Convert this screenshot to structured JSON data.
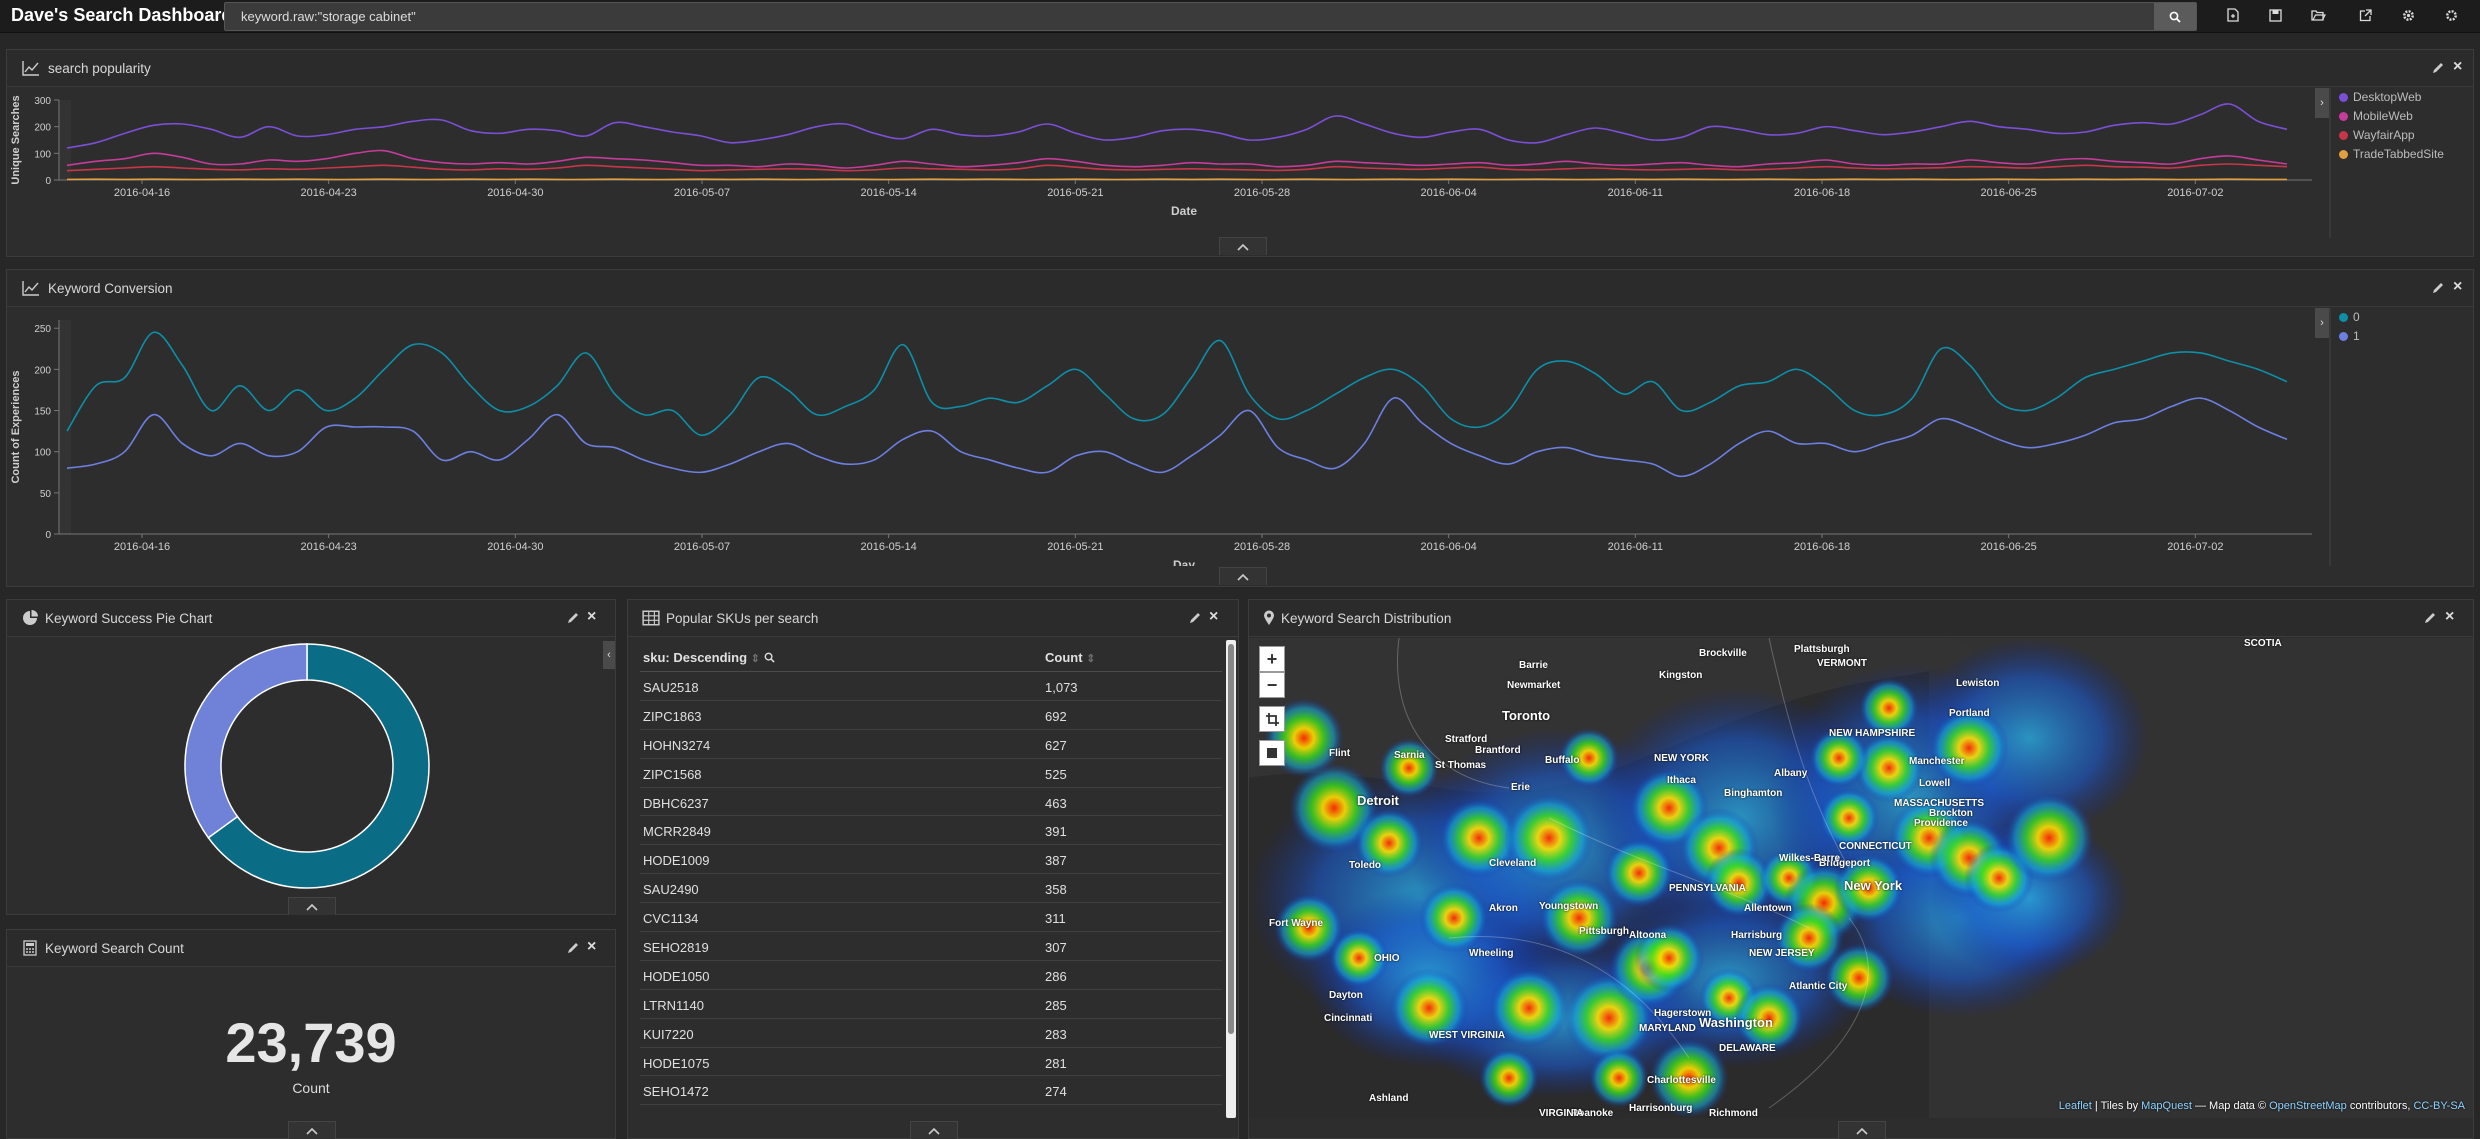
{
  "app": {
    "title": "Dave's Search Dashboard"
  },
  "search": {
    "value": "keyword.raw:\"storage cabinet\""
  },
  "icons": {
    "top": [
      "new-dashboard-icon",
      "save-icon",
      "open-icon",
      "share-icon",
      "options-icon",
      "settings-icon"
    ]
  },
  "colors": {
    "desktop": "#7b4fd6",
    "mobile": "#c53c9a",
    "wayfair": "#c8364a",
    "trade": "#e0a040",
    "conv0": "#0d8fa8",
    "conv1": "#6d7fe0",
    "pie_a": "#0b6c86",
    "pie_b": "#6f82d8"
  },
  "panels": {
    "popularity": {
      "title": "search popularity"
    },
    "conversion": {
      "title": "Keyword Conversion"
    },
    "pie": {
      "title": "Keyword Success Pie Chart"
    },
    "skus": {
      "title": "Popular SKUs per search"
    },
    "map": {
      "title": "Keyword Search Distribution"
    },
    "count": {
      "title": "Keyword Search Count",
      "value": "23,739",
      "label": "Count"
    }
  },
  "chart_data": [
    {
      "type": "line",
      "ylabel": "Unique Searches",
      "xlabel": "Date",
      "ylim": [
        0,
        300
      ],
      "yticks": [
        0,
        100,
        200,
        300
      ],
      "xticks": [
        "2016-04-16",
        "2016-04-23",
        "2016-04-30",
        "2016-05-07",
        "2016-05-14",
        "2016-05-21",
        "2016-05-28",
        "2016-06-04",
        "2016-06-11",
        "2016-06-18",
        "2016-06-25",
        "2016-07-02"
      ],
      "x_range": [
        "2016-04-13",
        "2016-07-06"
      ],
      "series": [
        {
          "name": "DesktopWeb",
          "values": [
            120,
            140,
            175,
            205,
            210,
            190,
            160,
            200,
            165,
            170,
            190,
            200,
            220,
            225,
            185,
            175,
            190,
            185,
            165,
            215,
            200,
            180,
            165,
            140,
            150,
            170,
            200,
            210,
            175,
            155,
            190,
            170,
            165,
            180,
            210,
            175,
            150,
            160,
            185,
            190,
            175,
            150,
            160,
            190,
            240,
            210,
            175,
            160,
            180,
            190,
            150,
            140,
            170,
            195,
            175,
            150,
            160,
            200,
            190,
            170,
            175,
            200,
            185,
            170,
            180,
            200,
            220,
            200,
            190,
            175,
            180,
            205,
            215,
            210,
            245,
            285,
            220,
            190
          ]
        },
        {
          "name": "MobileWeb",
          "values": [
            55,
            70,
            80,
            100,
            85,
            60,
            60,
            75,
            70,
            80,
            100,
            110,
            80,
            65,
            60,
            65,
            60,
            70,
            85,
            80,
            75,
            65,
            55,
            55,
            50,
            60,
            55,
            45,
            55,
            70,
            60,
            50,
            55,
            65,
            80,
            70,
            55,
            50,
            55,
            65,
            60,
            60,
            50,
            55,
            70,
            65,
            60,
            55,
            60,
            65,
            55,
            60,
            70,
            60,
            55,
            60,
            65,
            55,
            50,
            60,
            65,
            75,
            60,
            55,
            60,
            60,
            75,
            65,
            60,
            75,
            80,
            70,
            65,
            60,
            80,
            90,
            75,
            60
          ]
        },
        {
          "name": "WayfairApp",
          "values": [
            35,
            40,
            45,
            50,
            45,
            40,
            38,
            42,
            40,
            45,
            50,
            55,
            48,
            40,
            38,
            42,
            40,
            45,
            55,
            50,
            45,
            40,
            35,
            38,
            40,
            42,
            40,
            35,
            38,
            45,
            42,
            40,
            38,
            42,
            55,
            48,
            40,
            38,
            40,
            42,
            40,
            38,
            36,
            40,
            50,
            45,
            42,
            40,
            45,
            48,
            40,
            38,
            42,
            45,
            40,
            38,
            40,
            42,
            38,
            40,
            45,
            50,
            45,
            42,
            44,
            46,
            50,
            48,
            45,
            50,
            55,
            50,
            48,
            45,
            55,
            60,
            55,
            50
          ]
        },
        {
          "name": "TradeTabbedSite",
          "values": [
            2,
            3,
            2,
            3,
            2,
            2,
            3,
            2,
            3,
            2,
            2,
            3,
            2,
            2,
            3,
            2,
            3,
            2,
            2,
            3,
            2,
            2,
            3,
            2,
            3,
            2,
            2,
            3,
            2,
            2,
            3,
            2,
            3,
            2,
            2,
            3,
            2,
            2,
            3,
            2,
            3,
            2,
            2,
            3,
            2,
            2,
            3,
            2,
            3,
            2,
            2,
            3,
            2,
            2,
            3,
            2,
            3,
            2,
            2,
            3,
            2,
            2,
            3,
            2,
            3,
            2,
            2,
            3,
            2,
            2,
            3,
            2,
            3,
            2,
            2,
            3,
            2,
            2
          ]
        }
      ],
      "legend": "right"
    },
    {
      "type": "line",
      "ylabel": "Count of Experiences",
      "xlabel": "Day",
      "ylim": [
        0,
        260
      ],
      "yticks": [
        0,
        50,
        100,
        150,
        200,
        250
      ],
      "xticks": [
        "2016-04-16",
        "2016-04-23",
        "2016-04-30",
        "2016-05-07",
        "2016-05-14",
        "2016-05-21",
        "2016-05-28",
        "2016-06-04",
        "2016-06-11",
        "2016-06-18",
        "2016-06-25",
        "2016-07-02"
      ],
      "x_range": [
        "2016-04-13",
        "2016-07-06"
      ],
      "series": [
        {
          "name": "0",
          "values": [
            125,
            180,
            190,
            245,
            205,
            150,
            180,
            150,
            175,
            150,
            165,
            200,
            230,
            220,
            180,
            150,
            155,
            180,
            220,
            170,
            145,
            150,
            120,
            145,
            190,
            175,
            145,
            155,
            175,
            230,
            160,
            155,
            165,
            160,
            180,
            200,
            170,
            140,
            145,
            190,
            235,
            170,
            140,
            150,
            170,
            190,
            200,
            180,
            140,
            130,
            150,
            200,
            210,
            195,
            170,
            185,
            150,
            160,
            180,
            185,
            200,
            180,
            150,
            145,
            165,
            225,
            205,
            160,
            150,
            165,
            190,
            200,
            210,
            220,
            220,
            210,
            200,
            185
          ]
        },
        {
          "name": "1",
          "values": [
            80,
            85,
            100,
            145,
            110,
            95,
            110,
            95,
            100,
            130,
            130,
            130,
            125,
            90,
            100,
            90,
            115,
            145,
            110,
            105,
            90,
            80,
            75,
            85,
            100,
            110,
            95,
            85,
            90,
            115,
            125,
            100,
            90,
            80,
            75,
            95,
            100,
            85,
            75,
            95,
            120,
            150,
            105,
            90,
            80,
            110,
            165,
            135,
            110,
            95,
            85,
            100,
            105,
            95,
            90,
            85,
            70,
            85,
            110,
            125,
            110,
            110,
            100,
            110,
            120,
            140,
            130,
            115,
            105,
            110,
            120,
            135,
            140,
            155,
            165,
            150,
            130,
            115
          ]
        }
      ],
      "legend": "right"
    },
    {
      "type": "pie",
      "donut": true,
      "series": [
        {
          "name": "0",
          "value": 0.65
        },
        {
          "name": "1",
          "value": 0.35
        }
      ]
    }
  ],
  "legend_popularity": [
    "DesktopWeb",
    "MobileWeb",
    "WayfairApp",
    "TradeTabbedSite"
  ],
  "legend_conversion": [
    "0",
    "1"
  ],
  "sku_table": {
    "headers": [
      "sku: Descending",
      "Count"
    ],
    "rows": [
      [
        "SAU2518",
        "1,073"
      ],
      [
        "ZIPC1863",
        "692"
      ],
      [
        "HOHN3274",
        "627"
      ],
      [
        "ZIPC1568",
        "525"
      ],
      [
        "DBHC6237",
        "463"
      ],
      [
        "MCRR2849",
        "391"
      ],
      [
        "HODE1009",
        "387"
      ],
      [
        "SAU2490",
        "358"
      ],
      [
        "CVC1134",
        "311"
      ],
      [
        "SEHO2819",
        "307"
      ],
      [
        "HODE1050",
        "286"
      ],
      [
        "LTRN1140",
        "285"
      ],
      [
        "KUI7220",
        "283"
      ],
      [
        "HODE1075",
        "281"
      ],
      [
        "SEHO1472",
        "274"
      ]
    ]
  },
  "map": {
    "attribution": {
      "leaflet": "Leaflet",
      "tiles": "| Tiles by",
      "mapquest": "MapQuest",
      "mapdata": "— Map data ©",
      "osm": "OpenStreetMap",
      "contrib": "contributors,",
      "license": "CC-BY-SA"
    },
    "cities": [
      "Barrie",
      "Newmarket",
      "Toronto",
      "Kingston",
      "Brockville",
      "Plattsburgh",
      "VERMONT",
      "NEW HAMPSHIRE",
      "Portland",
      "Lewiston",
      "Manchester",
      "Lowell",
      "MASSACHUSETTS",
      "Providence",
      "Brockton",
      "Stratford",
      "Brantford",
      "St Thomas",
      "Sarnia",
      "Flint",
      "Detroit",
      "Toledo",
      "Erie",
      "Buffalo",
      "NEW YORK",
      "Ithaca",
      "Albany",
      "Binghamton",
      "CONNECTICUT",
      "Bridgeport",
      "New York",
      "Wilkes-Barre",
      "Allentown",
      "PENNSYLVANIA",
      "Harrisburg",
      "NEW JERSEY",
      "Atlantic City",
      "Pittsburgh",
      "Cleveland",
      "Akron",
      "Youngstown",
      "Wheeling",
      "Altoona",
      "Hagerstown",
      "MARYLAND",
      "Washington",
      "DELAWARE",
      "Charlottesville",
      "Harrisonburg",
      "Richmond",
      "WEST VIRGINIA",
      "Ashland",
      "Cincinnati",
      "Dayton",
      "Fort Wayne",
      "OHIO",
      "Roanoke",
      "VIRGINIA",
      "SCOTIA"
    ]
  }
}
